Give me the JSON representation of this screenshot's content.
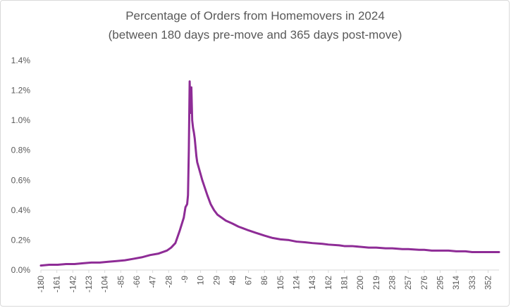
{
  "chart_data": {
    "type": "line",
    "title_line1": "Percentage of Orders from Homemovers in 2024",
    "title_line2": "(between 180 days pre-move and 365 days post-move)",
    "xlabel": "",
    "ylabel": "",
    "xlim": [
      -180,
      365
    ],
    "ylim": [
      0,
      1.4
    ],
    "y_ticks": [
      0,
      0.2,
      0.4,
      0.6,
      0.8,
      1.0,
      1.2,
      1.4
    ],
    "y_tick_labels": [
      "0.0%",
      "0.2%",
      "0.4%",
      "0.6%",
      "0.8%",
      "1.0%",
      "1.2%",
      "1.4%"
    ],
    "x_ticks": [
      -180,
      -161,
      -142,
      -123,
      -104,
      -85,
      -66,
      -47,
      -28,
      -9,
      10,
      29,
      48,
      67,
      86,
      105,
      124,
      143,
      162,
      181,
      200,
      219,
      238,
      257,
      276,
      295,
      314,
      333,
      352
    ],
    "x_tick_labels": [
      "-180",
      "-161",
      "-142",
      "-123",
      "-104",
      "-85",
      "-66",
      "-47",
      "-28",
      "-9",
      "10",
      "29",
      "48",
      "67",
      "86",
      "105",
      "124",
      "143",
      "162",
      "181",
      "200",
      "219",
      "238",
      "257",
      "276",
      "295",
      "314",
      "333",
      "352"
    ],
    "grid": false,
    "series": [
      {
        "name": "Percentage of Orders",
        "color": "#8e2c96",
        "x": [
          -180,
          -170,
          -160,
          -150,
          -140,
          -130,
          -120,
          -110,
          -100,
          -90,
          -80,
          -70,
          -60,
          -50,
          -40,
          -30,
          -25,
          -20,
          -15,
          -10,
          -8,
          -6,
          -5,
          -4,
          -3,
          -2,
          -1,
          0,
          1,
          2,
          3,
          4,
          5,
          6,
          8,
          10,
          12,
          15,
          18,
          22,
          26,
          30,
          35,
          40,
          48,
          55,
          60,
          67,
          75,
          86,
          95,
          105,
          115,
          124,
          135,
          143,
          155,
          162,
          175,
          181,
          190,
          200,
          210,
          219,
          230,
          238,
          250,
          257,
          270,
          276,
          285,
          295,
          305,
          314,
          325,
          333,
          345,
          352,
          360,
          365
        ],
        "values": [
          0.03,
          0.035,
          0.035,
          0.04,
          0.04,
          0.045,
          0.05,
          0.05,
          0.055,
          0.06,
          0.065,
          0.075,
          0.085,
          0.1,
          0.11,
          0.13,
          0.15,
          0.18,
          0.26,
          0.35,
          0.42,
          0.44,
          0.5,
          0.8,
          1.26,
          1.05,
          1.22,
          1.0,
          0.95,
          0.92,
          0.88,
          0.82,
          0.76,
          0.72,
          0.68,
          0.64,
          0.6,
          0.55,
          0.5,
          0.44,
          0.4,
          0.37,
          0.35,
          0.33,
          0.31,
          0.29,
          0.28,
          0.265,
          0.25,
          0.23,
          0.215,
          0.205,
          0.2,
          0.19,
          0.185,
          0.18,
          0.175,
          0.17,
          0.165,
          0.16,
          0.16,
          0.155,
          0.15,
          0.15,
          0.145,
          0.145,
          0.14,
          0.14,
          0.135,
          0.135,
          0.13,
          0.13,
          0.13,
          0.125,
          0.125,
          0.12,
          0.12,
          0.12,
          0.12,
          0.12
        ]
      }
    ]
  }
}
